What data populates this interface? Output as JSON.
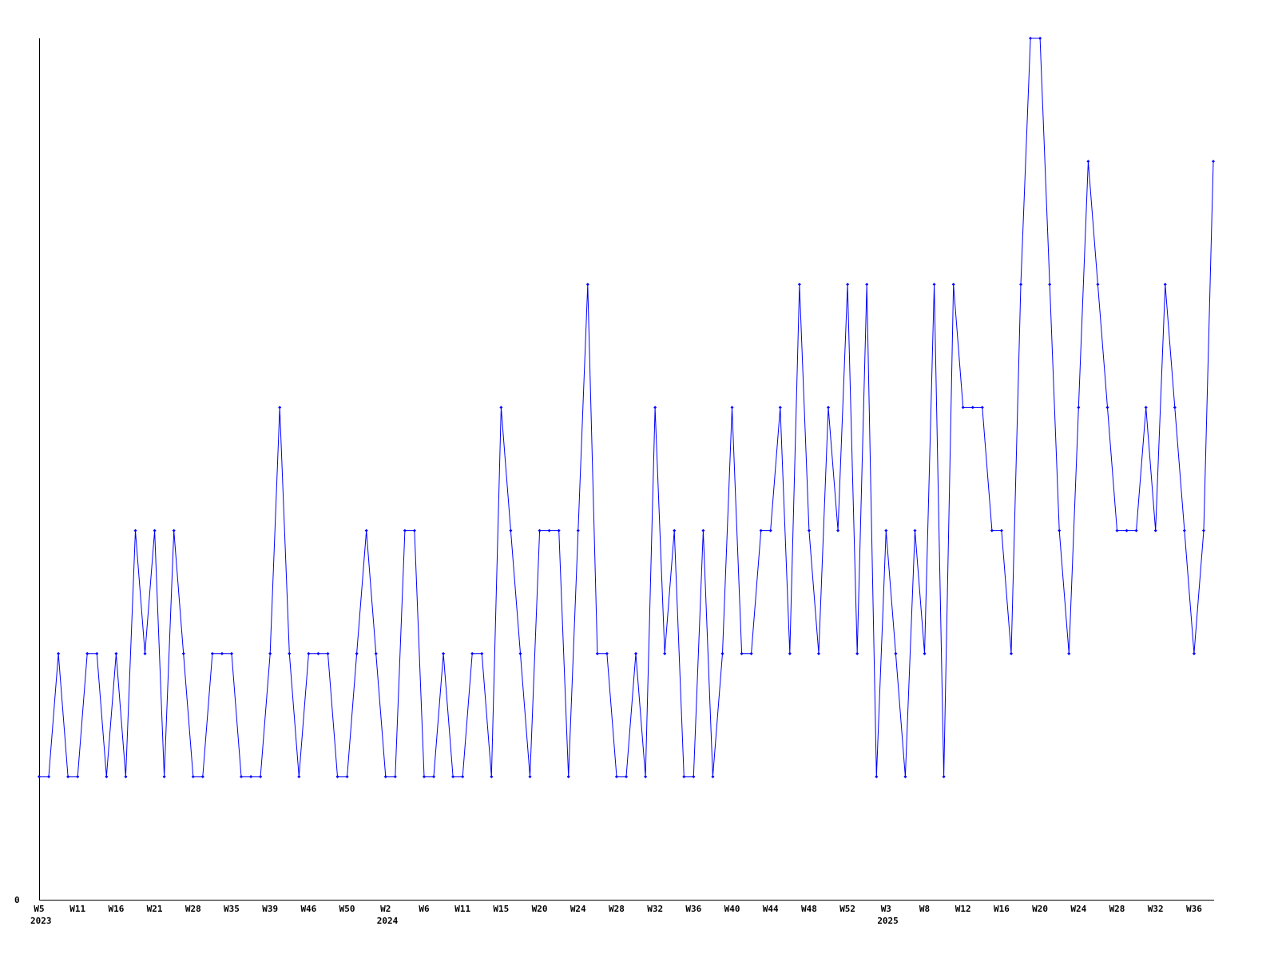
{
  "chart_data": {
    "type": "line",
    "title": "",
    "xlabel": "",
    "ylabel": "",
    "ylim": [
      0,
      7
    ],
    "y_tick_labels": [
      "0"
    ],
    "grid": false,
    "line_color": "#0000ff",
    "axis_color": "#000000",
    "x_tick_labels": [
      {
        "index": 0,
        "label": "W5",
        "year": "2023"
      },
      {
        "index": 4,
        "label": "W11"
      },
      {
        "index": 8,
        "label": "W16"
      },
      {
        "index": 12,
        "label": "W21"
      },
      {
        "index": 16,
        "label": "W28"
      },
      {
        "index": 20,
        "label": "W35"
      },
      {
        "index": 24,
        "label": "W39"
      },
      {
        "index": 28,
        "label": "W46"
      },
      {
        "index": 32,
        "label": "W50"
      },
      {
        "index": 36,
        "label": "W2",
        "year": "2024"
      },
      {
        "index": 40,
        "label": "W6"
      },
      {
        "index": 44,
        "label": "W11"
      },
      {
        "index": 48,
        "label": "W15"
      },
      {
        "index": 52,
        "label": "W20"
      },
      {
        "index": 56,
        "label": "W24"
      },
      {
        "index": 60,
        "label": "W28"
      },
      {
        "index": 64,
        "label": "W32"
      },
      {
        "index": 68,
        "label": "W36"
      },
      {
        "index": 72,
        "label": "W40"
      },
      {
        "index": 76,
        "label": "W44"
      },
      {
        "index": 80,
        "label": "W48"
      },
      {
        "index": 84,
        "label": "W52"
      },
      {
        "index": 88,
        "label": "W3",
        "year": "2025"
      },
      {
        "index": 92,
        "label": "W8"
      },
      {
        "index": 96,
        "label": "W12"
      },
      {
        "index": 100,
        "label": "W16"
      },
      {
        "index": 104,
        "label": "W20"
      },
      {
        "index": 108,
        "label": "W24"
      },
      {
        "index": 112,
        "label": "W28"
      },
      {
        "index": 116,
        "label": "W32"
      },
      {
        "index": 120,
        "label": "W36"
      }
    ],
    "series": [
      {
        "values": [
          1,
          1,
          2,
          1,
          1,
          2,
          2,
          1,
          2,
          1,
          3,
          2,
          3,
          1,
          3,
          2,
          1,
          1,
          2,
          2,
          2,
          1,
          1,
          1,
          2,
          4,
          2,
          1,
          2,
          2,
          2,
          1,
          1,
          2,
          3,
          2,
          1,
          1,
          3,
          3,
          1,
          1,
          2,
          1,
          1,
          2,
          2,
          1,
          4,
          3,
          2,
          1,
          3,
          3,
          3,
          1,
          3,
          5,
          2,
          2,
          1,
          1,
          2,
          1,
          4,
          2,
          3,
          1,
          1,
          3,
          1,
          2,
          4,
          2,
          2,
          3,
          3,
          4,
          2,
          5,
          3,
          2,
          4,
          3,
          5,
          2,
          5,
          1,
          3,
          2,
          1,
          3,
          2,
          5,
          1,
          5,
          4,
          4,
          4,
          3,
          3,
          2,
          5,
          7,
          7,
          5,
          3,
          2,
          4,
          6,
          5,
          4,
          3,
          3,
          3,
          4,
          3,
          5,
          4,
          3,
          2,
          3,
          6
        ]
      }
    ]
  }
}
